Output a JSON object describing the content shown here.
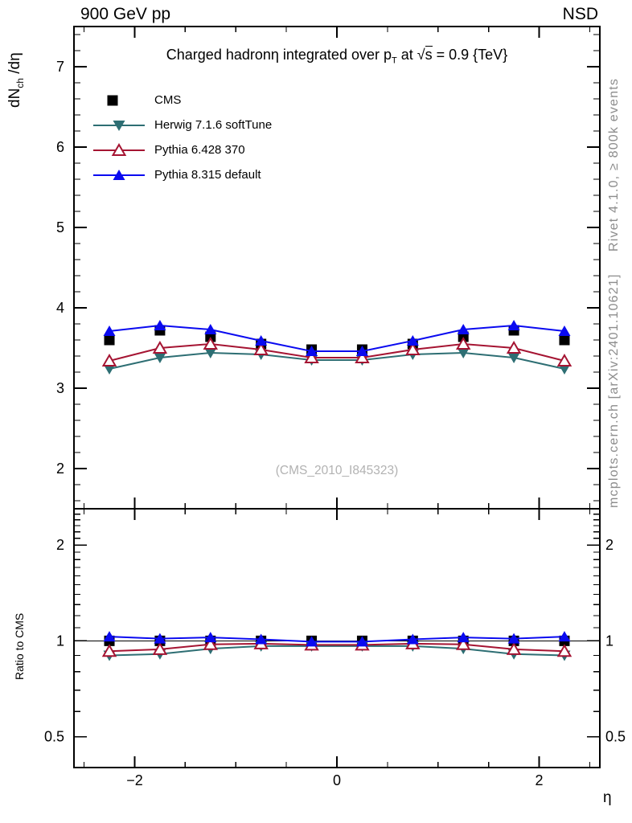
{
  "header": {
    "left": "900 GeV pp",
    "right": "NSD"
  },
  "title": {
    "part1": "Charged hadronη integrated over p",
    "sub": "T",
    "part2": " at ",
    "sqrt_sym": "√",
    "sqrt_arg": "s",
    "part3": " = 0.9 {TeV}"
  },
  "axis_labels": {
    "y_main": {
      "p1": "dN",
      "sub": "ch",
      "p2": " /dη"
    },
    "y_ratio": "Ratio to CMS",
    "x": "η"
  },
  "side_notes": {
    "right_top": "Rivet 4.1.0, ≥ 800k events",
    "right_bottom": "mcplots.cern.ch [arXiv:2401.10621]"
  },
  "watermark": "(CMS_2010_I845323)",
  "colors": {
    "cms": "#000000",
    "herwig": "#2d6e73",
    "pythia6": "#a51432",
    "pythia8": "#0a0af0",
    "note_gray": "#8c8c8c",
    "watermark_gray": "#b2b2b2"
  },
  "chart_data": {
    "type": "line",
    "title": "Charged hadron η integrated over pT at √s = 0.9 {TeV}",
    "xlabel": "η",
    "xlim": [
      -2.6,
      2.6
    ],
    "xticks": [
      -2,
      0,
      2
    ],
    "xtick_minor_step": 0.5,
    "x": [
      -2.25,
      -1.75,
      -1.25,
      -0.75,
      -0.25,
      0.25,
      0.75,
      1.25,
      1.75,
      2.25
    ],
    "main_panel": {
      "ylabel": "dN_ch /dη",
      "yscale": "linear",
      "ylim": [
        1.5,
        7.5
      ],
      "yticks": [
        2,
        3,
        4,
        5,
        6,
        7
      ],
      "ytick_minor_step": 0.2
    },
    "ratio_panel": {
      "ylabel": "Ratio to CMS",
      "yscale": "log",
      "ylim": [
        0.4,
        2.6
      ],
      "yticks": [
        0.5,
        1,
        2
      ],
      "ytick_minor_step": 0.1,
      "reference_line": 1
    },
    "series": [
      {
        "name": "CMS",
        "color": "#000000",
        "marker": "square-filled",
        "line": false,
        "values": [
          3.6,
          3.72,
          3.64,
          3.55,
          3.48,
          3.48,
          3.55,
          3.64,
          3.72,
          3.6
        ],
        "ratio": [
          1,
          1,
          1,
          1,
          1,
          1,
          1,
          1,
          1,
          1
        ]
      },
      {
        "name": "Herwig 7.1.6 softTune",
        "color": "#2d6e73",
        "marker": "triangle-down-filled",
        "line": true,
        "values": [
          3.24,
          3.38,
          3.44,
          3.42,
          3.35,
          3.35,
          3.42,
          3.44,
          3.38,
          3.24
        ],
        "ratio": [
          0.9,
          0.909,
          0.945,
          0.963,
          0.963,
          0.963,
          0.963,
          0.945,
          0.909,
          0.9
        ]
      },
      {
        "name": "Pythia 6.428 370",
        "color": "#a51432",
        "marker": "triangle-up-open",
        "line": true,
        "values": [
          3.34,
          3.5,
          3.55,
          3.48,
          3.38,
          3.38,
          3.48,
          3.55,
          3.5,
          3.34
        ],
        "ratio": [
          0.928,
          0.941,
          0.975,
          0.98,
          0.971,
          0.971,
          0.98,
          0.975,
          0.941,
          0.928
        ]
      },
      {
        "name": "Pythia 8.315 default",
        "color": "#0a0af0",
        "marker": "triangle-up-filled",
        "line": true,
        "values": [
          3.71,
          3.78,
          3.73,
          3.59,
          3.46,
          3.46,
          3.59,
          3.73,
          3.78,
          3.71
        ],
        "ratio": [
          1.031,
          1.016,
          1.025,
          1.011,
          0.994,
          0.994,
          1.011,
          1.025,
          1.016,
          1.031
        ]
      }
    ]
  }
}
